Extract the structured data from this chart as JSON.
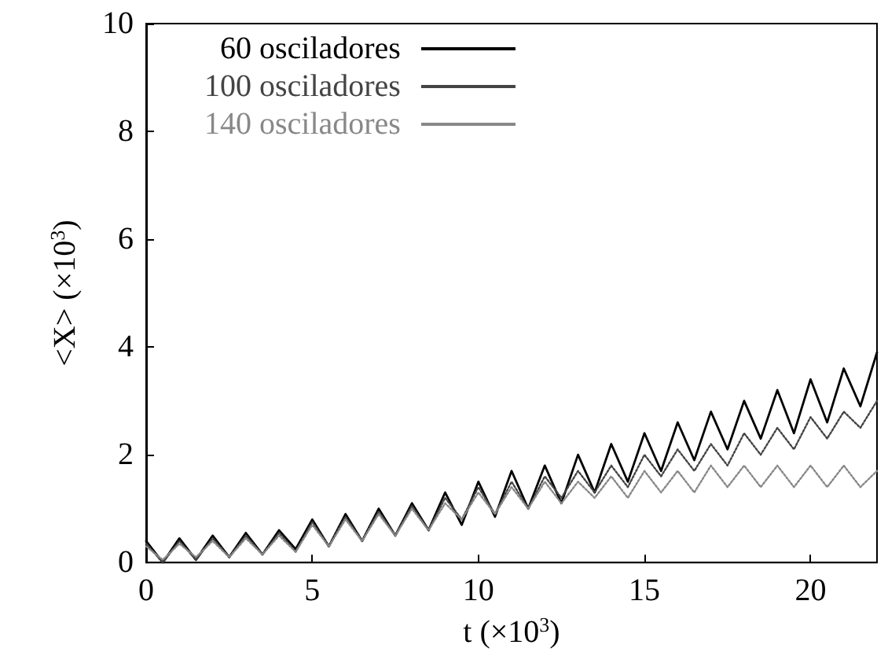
{
  "chart_data": {
    "type": "line",
    "xlabel": "t (×10$^{3}$)",
    "ylabel": "<X> (×10$^{3}$)",
    "x": [
      0,
      0.5,
      1,
      1.5,
      2,
      2.5,
      3,
      3.5,
      4,
      4.5,
      5,
      5.5,
      6,
      6.5,
      7,
      7.5,
      8,
      8.5,
      9,
      9.5,
      10,
      10.5,
      11,
      11.5,
      12,
      12.5,
      13,
      13.5,
      14,
      14.5,
      15,
      15.5,
      16,
      16.5,
      17,
      17.5,
      18,
      18.5,
      19,
      19.5,
      20,
      20.5,
      21,
      21.5,
      22
    ],
    "series": [
      {
        "name": "60 osciladores",
        "color": "#000000",
        "line_style": "solid",
        "values": [
          0.4,
          0.0,
          0.45,
          0.05,
          0.5,
          0.1,
          0.55,
          0.15,
          0.6,
          0.25,
          0.8,
          0.3,
          0.9,
          0.4,
          1.0,
          0.5,
          1.1,
          0.6,
          1.3,
          0.7,
          1.5,
          0.85,
          1.7,
          1.0,
          1.8,
          1.1,
          2.0,
          1.3,
          2.2,
          1.5,
          2.4,
          1.7,
          2.6,
          1.9,
          2.8,
          2.1,
          3.0,
          2.3,
          3.2,
          2.4,
          3.4,
          2.6,
          3.6,
          2.9,
          3.9
        ]
      },
      {
        "name": "100 osciladores",
        "color": "#444444",
        "line_style": "dotted",
        "values": [
          0.35,
          0.0,
          0.4,
          0.05,
          0.45,
          0.1,
          0.5,
          0.15,
          0.55,
          0.2,
          0.75,
          0.3,
          0.85,
          0.4,
          0.95,
          0.5,
          1.05,
          0.6,
          1.2,
          0.8,
          1.4,
          0.9,
          1.5,
          1.0,
          1.6,
          1.2,
          1.7,
          1.3,
          1.8,
          1.4,
          2.0,
          1.6,
          2.1,
          1.7,
          2.2,
          1.8,
          2.4,
          2.0,
          2.5,
          2.1,
          2.7,
          2.3,
          2.8,
          2.5,
          3.0
        ]
      },
      {
        "name": "140 osciladores",
        "color": "#888888",
        "line_style": "dotted",
        "values": [
          0.3,
          0.05,
          0.35,
          0.1,
          0.4,
          0.1,
          0.45,
          0.15,
          0.5,
          0.2,
          0.7,
          0.3,
          0.8,
          0.4,
          0.9,
          0.5,
          1.0,
          0.6,
          1.1,
          0.8,
          1.3,
          0.9,
          1.4,
          1.0,
          1.5,
          1.1,
          1.5,
          1.2,
          1.6,
          1.2,
          1.7,
          1.3,
          1.7,
          1.3,
          1.8,
          1.4,
          1.8,
          1.4,
          1.8,
          1.4,
          1.8,
          1.4,
          1.8,
          1.4,
          1.7
        ]
      }
    ],
    "xlim": [
      0,
      22
    ],
    "xticks": [
      0,
      5,
      10,
      15,
      20
    ],
    "ylim": [
      0,
      10
    ],
    "yticks": [
      0,
      2,
      4,
      6,
      8,
      10
    ],
    "grid": false,
    "legend": "top left",
    "marker": "none"
  }
}
